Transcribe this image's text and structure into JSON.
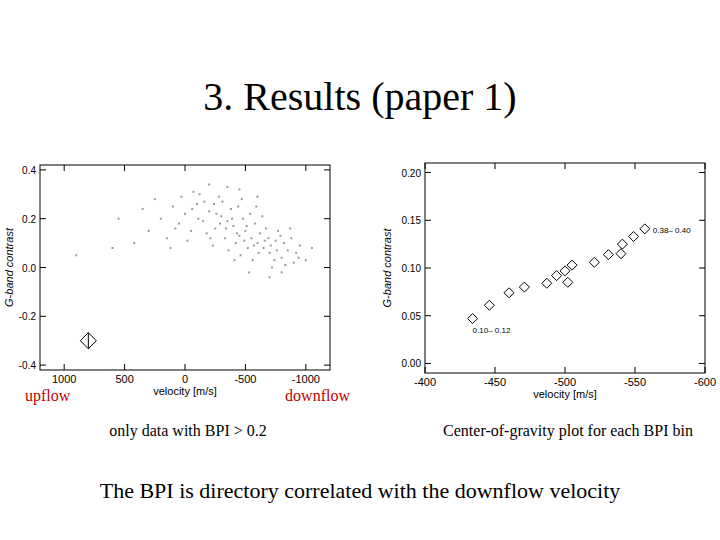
{
  "slide": {
    "title": "3. Results (paper 1)",
    "conclusion": "The BPI is directory correlated with the downflow velocity"
  },
  "chart_data": [
    {
      "type": "scatter",
      "caption": "only data with BPI > 0.2",
      "x_label": "velocity [m/s]",
      "y_label": "G-band contrast",
      "annotations": [
        "upflow",
        "downflow"
      ],
      "xlim": [
        1200,
        -1200
      ],
      "ylim": [
        -0.42,
        0.42
      ],
      "xticks": [
        1000,
        500,
        0,
        -500,
        -1000
      ],
      "yticks": [
        0.4,
        0.2,
        {
          "value": 0,
          "label": "0.0"
        },
        -0.2,
        -0.4
      ],
      "series": [
        {
          "color": "#9a9a9a",
          "marker": "dot",
          "x": [
            -450,
            -500,
            -550,
            -400,
            -600,
            -350,
            -650,
            -300,
            -700,
            -480,
            -520,
            -420,
            -580,
            -380,
            -620,
            -250,
            -750,
            -200,
            -800,
            -150,
            -850,
            -100,
            -900,
            -50,
            -950,
            0,
            50,
            100,
            150,
            200,
            250,
            -460,
            -540,
            -440,
            -560,
            -330,
            -670,
            -280,
            -720,
            -230,
            -770,
            -360,
            -640,
            -470,
            -530,
            -410,
            -590,
            -310,
            -690,
            -260,
            -740,
            -180,
            -820,
            -120,
            -880,
            -60,
            -940,
            -20,
            30,
            80,
            120,
            -490,
            -510,
            -430,
            -570,
            -390,
            -610,
            -340,
            -660,
            -290,
            -710,
            -240,
            -760,
            -210,
            -790,
            -160,
            -830,
            -110,
            -870,
            -70,
            -920,
            -1000,
            -1050,
            300,
            350,
            420,
            550,
            -450,
            -600,
            -350,
            -700,
            -200,
            -800,
            600,
            900
          ],
          "values": [
            0.13,
            0.15,
            0.12,
            0.17,
            0.1,
            0.19,
            0.08,
            0.21,
            0.06,
            0.2,
            0.08,
            0.1,
            0.18,
            0.24,
            0.14,
            0.16,
            0.11,
            0.23,
            0.04,
            0.19,
            0.07,
            0.26,
            0.02,
            0.15,
            0.09,
            0.22,
            0.18,
            0.25,
            0.12,
            0.2,
            0.28,
            0.05,
            0.22,
            0.25,
            0.03,
            0.12,
            0.16,
            0.29,
            0.0,
            0.09,
            0.15,
            0.07,
            0.21,
            0.28,
            -0.02,
            0.03,
            0.25,
            0.27,
            0.12,
            0.22,
            0.03,
            0.14,
            0.1,
            0.3,
            0.12,
            0.24,
            0.04,
            0.11,
            0.29,
            0.16,
            0.08,
            0.11,
            0.17,
            0.14,
            0.09,
            0.2,
            0.06,
            0.16,
            0.11,
            0.18,
            0.09,
            0.26,
            0.07,
            0.12,
            0.13,
            0.27,
            0.01,
            0.2,
            0.16,
            0.31,
            0.06,
            0.03,
            0.08,
            0.15,
            0.24,
            0.1,
            0.2,
            0.32,
            0.29,
            0.33,
            -0.04,
            0.34,
            -0.02,
            0.08,
            0.05
          ]
        },
        {
          "color": "#000000",
          "marker": "diamond-cross",
          "x": [
            800
          ],
          "values": [
            -0.3
          ]
        }
      ]
    },
    {
      "type": "scatter",
      "caption": "Center-of-gravity plot for each BPI bin",
      "x_label": "velocity [m/s]",
      "y_label": "G-band contrast",
      "xlim": [
        -400,
        -600
      ],
      "ylim": [
        -0.01,
        0.21
      ],
      "xticks": [
        -400,
        -450,
        -500,
        -550,
        -600
      ],
      "yticks": [
        {
          "value": 0,
          "label": "0.00"
        },
        {
          "value": 0.05,
          "label": "0.05"
        },
        {
          "value": 0.1,
          "label": "0.10"
        },
        {
          "value": 0.15,
          "label": "0.15"
        },
        {
          "value": 0.2,
          "label": "0.20"
        }
      ],
      "series": [
        {
          "color": "#000000",
          "marker": "diamond",
          "x": [
            -434,
            -446,
            -460,
            -471,
            -487,
            -494,
            -500,
            -502,
            -505,
            -521,
            -531,
            -540,
            -541,
            -549,
            -557
          ],
          "values": [
            0.047,
            0.061,
            0.074,
            0.08,
            0.084,
            0.092,
            0.097,
            0.085,
            0.103,
            0.106,
            0.114,
            0.115,
            0.125,
            0.133,
            0.141
          ],
          "point_labels": [
            "0.10– 0.12",
            null,
            null,
            null,
            null,
            null,
            null,
            null,
            null,
            null,
            null,
            null,
            null,
            null,
            "0.38– 0.40"
          ]
        }
      ]
    }
  ]
}
